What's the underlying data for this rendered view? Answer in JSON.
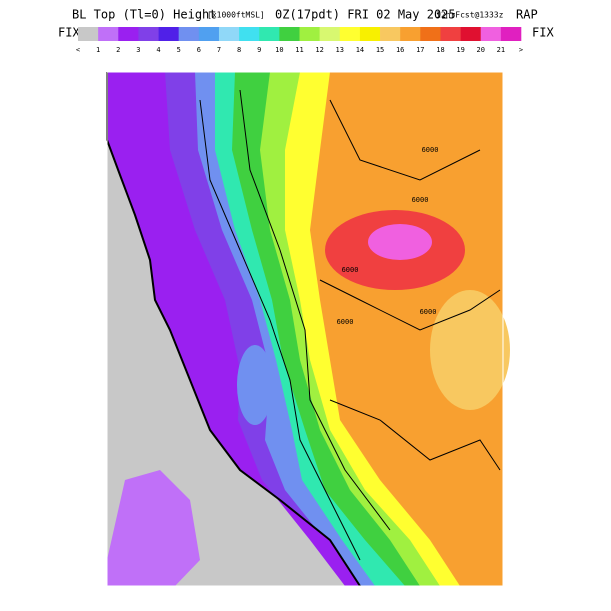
{
  "header": {
    "title": "BL Top (Tl=0) Height",
    "units": "[x1000ftMSL]",
    "valid": "0Z(17pdt) FRI 02 May 2025",
    "forecast": "12hrFcst@1333z",
    "model": "RAP",
    "fix_left": "FIX",
    "fix_right": "FIX"
  },
  "colorbar": {
    "labels": [
      "<",
      "1",
      "2",
      "3",
      "4",
      "5",
      "6",
      "7",
      "8",
      "9",
      "10",
      "11",
      "12",
      "13",
      "14",
      "15",
      "16",
      "17",
      "18",
      "19",
      "20",
      "21",
      ">"
    ],
    "colors": [
      "#c8c8c8",
      "#c070f8",
      "#9a20f0",
      "#8040e8",
      "#5020e8",
      "#7090f0",
      "#50a0f0",
      "#90d8f8",
      "#40e0f0",
      "#30e8b0",
      "#40d040",
      "#a0f040",
      "#d8f870",
      "#ffff30",
      "#f8f000",
      "#f8c860",
      "#f8a030",
      "#f07018",
      "#f04040",
      "#e01030",
      "#f060e0",
      "#e020c0"
    ]
  },
  "contour_labels": [
    "6000",
    "6000",
    "6000",
    "6000",
    "6000"
  ]
}
